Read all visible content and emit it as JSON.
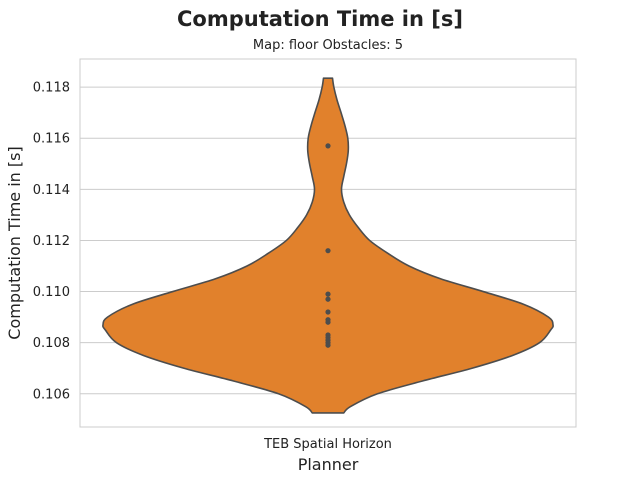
{
  "chart_data": {
    "type": "violin",
    "title": "Computation Time in [s]",
    "subtitle": "Map: floor Obstacles: 5",
    "xlabel": "Planner",
    "ylabel": "Computation Time in [s]",
    "categories": [
      "TEB Spatial Horizon"
    ],
    "ylim": [
      0.1047,
      0.1191
    ],
    "yticks": [
      0.106,
      0.108,
      0.11,
      0.112,
      0.114,
      0.116,
      0.118
    ],
    "ytick_labels": [
      "0.106",
      "0.108",
      "0.110",
      "0.112",
      "0.114",
      "0.116",
      "0.118"
    ],
    "grid": true,
    "fill_color": "#e1812c",
    "edge_color": "#4d4d4d",
    "point_color": "#4d4d4d",
    "points": [
      0.1157,
      0.1116,
      0.1099,
      0.1097,
      0.1092,
      0.1089,
      0.1088,
      0.1083,
      0.1082,
      0.1081,
      0.108,
      0.1079
    ],
    "density_profile": [
      {
        "y": 0.10525,
        "w": 0.07
      },
      {
        "y": 0.1055,
        "w": 0.1
      },
      {
        "y": 0.106,
        "w": 0.22
      },
      {
        "y": 0.1065,
        "w": 0.42
      },
      {
        "y": 0.107,
        "w": 0.64
      },
      {
        "y": 0.1075,
        "w": 0.82
      },
      {
        "y": 0.108,
        "w": 0.94
      },
      {
        "y": 0.1085,
        "w": 0.99
      },
      {
        "y": 0.1087,
        "w": 1.0
      },
      {
        "y": 0.109,
        "w": 0.98
      },
      {
        "y": 0.1095,
        "w": 0.87
      },
      {
        "y": 0.11,
        "w": 0.69
      },
      {
        "y": 0.1105,
        "w": 0.5
      },
      {
        "y": 0.111,
        "w": 0.36
      },
      {
        "y": 0.1115,
        "w": 0.265
      },
      {
        "y": 0.112,
        "w": 0.185
      },
      {
        "y": 0.1125,
        "w": 0.135
      },
      {
        "y": 0.113,
        "w": 0.095
      },
      {
        "y": 0.1135,
        "w": 0.07
      },
      {
        "y": 0.114,
        "w": 0.06
      },
      {
        "y": 0.1145,
        "w": 0.07
      },
      {
        "y": 0.115,
        "w": 0.082
      },
      {
        "y": 0.1155,
        "w": 0.09
      },
      {
        "y": 0.116,
        "w": 0.088
      },
      {
        "y": 0.1165,
        "w": 0.075
      },
      {
        "y": 0.117,
        "w": 0.058
      },
      {
        "y": 0.1175,
        "w": 0.04
      },
      {
        "y": 0.118,
        "w": 0.026
      },
      {
        "y": 0.11835,
        "w": 0.02
      }
    ]
  }
}
